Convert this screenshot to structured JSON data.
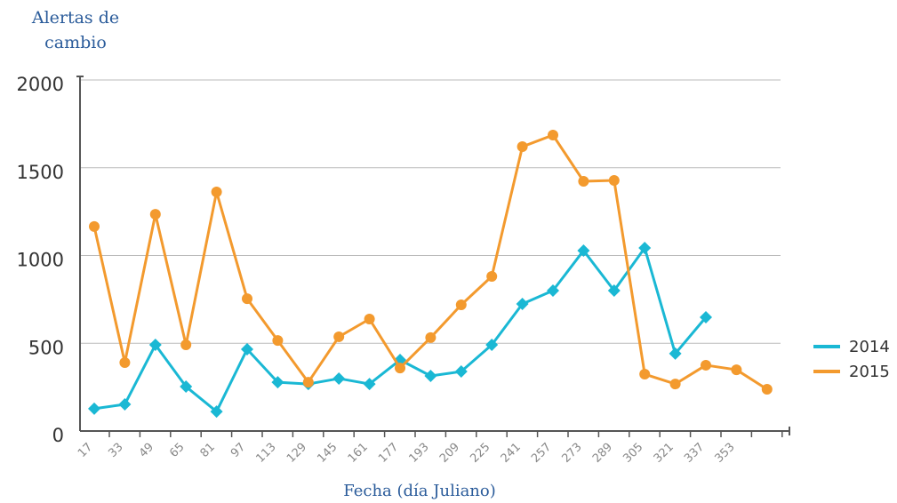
{
  "chart_data": {
    "type": "line",
    "y_label": "Alertas de cambio",
    "x_label": "Fecha (día Juliano)",
    "categories": [
      "17",
      "33",
      "49",
      "65",
      "81",
      "97",
      "113",
      "129",
      "145",
      "161",
      "177",
      "193",
      "209",
      "225",
      "241",
      "257",
      "273",
      "289",
      "305",
      "321",
      "337",
      "353",
      null
    ],
    "series": [
      {
        "name": "2014",
        "color": "#1ab8d4",
        "marker": "diamond",
        "values": [
          127,
          152,
          491,
          253,
          111,
          466,
          278,
          268,
          299,
          268,
          405,
          314,
          339,
          491,
          724,
          800,
          1028,
          800,
          1043,
          441,
          648,
          null,
          null
        ]
      },
      {
        "name": "2015",
        "color": "#f39a2e",
        "marker": "circle",
        "values": [
          1165,
          390,
          1235,
          491,
          1362,
          754,
          516,
          278,
          537,
          638,
          359,
          532,
          719,
          881,
          1620,
          1686,
          1423,
          1428,
          324,
          268,
          375,
          349,
          238
        ]
      }
    ],
    "ylim": [
      0,
      2000
    ],
    "yticks": [
      0,
      500,
      1000,
      1500,
      2000
    ],
    "grid": true,
    "legend": "right"
  }
}
